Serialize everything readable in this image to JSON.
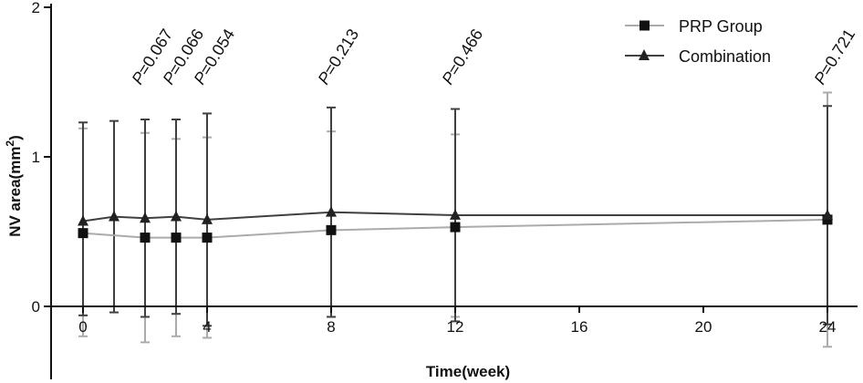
{
  "chart_data": {
    "type": "line",
    "title": "",
    "xlabel": "Time(week)",
    "ylabel_main": "NV area(mm",
    "ylabel_sup": "2",
    "ylabel_close": ")",
    "ylim": [
      -0.5,
      2
    ],
    "xlim": [
      -0.8,
      25
    ],
    "y_ticks": [
      {
        "value": 0,
        "label": "0"
      },
      {
        "value": 1,
        "label": "1"
      },
      {
        "value": 2,
        "label": "2"
      }
    ],
    "x_ticks": [
      {
        "value": 0,
        "label": "0"
      },
      {
        "value": 4,
        "label": "4"
      },
      {
        "value": 8,
        "label": "8"
      },
      {
        "value": 12,
        "label": "12"
      },
      {
        "value": 16,
        "label": "16"
      },
      {
        "value": 20,
        "label": "20"
      },
      {
        "value": 24,
        "label": "24"
      }
    ],
    "legend_position": "top-right",
    "series": [
      {
        "name": "PRP Group",
        "marker": "square",
        "color": "#ababab",
        "points": [
          {
            "x": 0,
            "y": 0.49,
            "lo": -0.2,
            "hi": 1.19
          },
          {
            "x": 2,
            "y": 0.46,
            "lo": -0.24,
            "hi": 1.16
          },
          {
            "x": 3,
            "y": 0.46,
            "lo": -0.2,
            "hi": 1.12
          },
          {
            "x": 4,
            "y": 0.46,
            "lo": -0.21,
            "hi": 1.13
          },
          {
            "x": 8,
            "y": 0.51,
            "lo": -0.07,
            "hi": 1.17
          },
          {
            "x": 12,
            "y": 0.53,
            "lo": -0.07,
            "hi": 1.15
          },
          {
            "x": 24,
            "y": 0.58,
            "lo": -0.27,
            "hi": 1.43
          }
        ]
      },
      {
        "name": "Combination",
        "marker": "triangle",
        "color": "#404040",
        "points": [
          {
            "x": 0,
            "y": 0.57,
            "lo": -0.06,
            "hi": 1.23
          },
          {
            "x": 1,
            "y": 0.6,
            "lo": -0.04,
            "hi": 1.24
          },
          {
            "x": 2,
            "y": 0.59,
            "lo": -0.07,
            "hi": 1.25
          },
          {
            "x": 3,
            "y": 0.6,
            "lo": -0.05,
            "hi": 1.25
          },
          {
            "x": 4,
            "y": 0.58,
            "lo": -0.13,
            "hi": 1.29
          },
          {
            "x": 8,
            "y": 0.63,
            "lo": -0.07,
            "hi": 1.33
          },
          {
            "x": 12,
            "y": 0.61,
            "lo": -0.1,
            "hi": 1.32
          },
          {
            "x": 24,
            "y": 0.61,
            "lo": -0.12,
            "hi": 1.34
          }
        ]
      }
    ],
    "annotations": [
      {
        "x": 2,
        "text": "P=0.067"
      },
      {
        "x": 3,
        "text": "P=0.066"
      },
      {
        "x": 4,
        "text": "P=0.054"
      },
      {
        "x": 8,
        "text": "P=0.213"
      },
      {
        "x": 12,
        "text": "P=0.466"
      },
      {
        "x": 24,
        "text": "P=0.721"
      }
    ]
  }
}
